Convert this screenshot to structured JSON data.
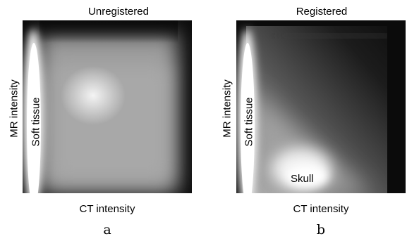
{
  "panels": [
    {
      "title": "Unregistered",
      "xlabel": "CT intensity",
      "ylabel": "MR intensity",
      "label": "a",
      "annotations": {
        "soft_tissue": "Soft tissue"
      }
    },
    {
      "title": "Registered",
      "xlabel": "CT intensity",
      "ylabel": "MR intensity",
      "label": "b",
      "annotations": {
        "soft_tissue": "Soft tissue",
        "skull": "Skull"
      }
    }
  ]
}
